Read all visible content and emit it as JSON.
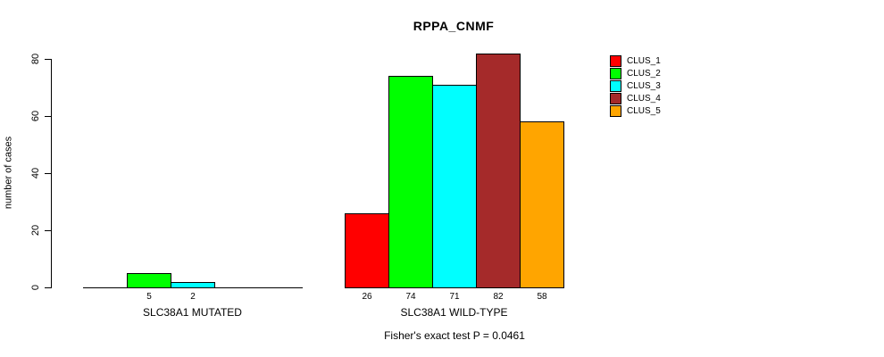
{
  "chart_data": {
    "type": "bar",
    "title": "RPPA_CNMF",
    "ylabel": "number of cases",
    "ylim": [
      0,
      80
    ],
    "yticks": [
      0,
      20,
      40,
      60,
      80
    ],
    "grid": false,
    "legend_position": "right",
    "legend": [
      {
        "name": "CLUS_1",
        "color": "#FF0000"
      },
      {
        "name": "CLUS_2",
        "color": "#00FF00"
      },
      {
        "name": "CLUS_3",
        "color": "#00FFFF"
      },
      {
        "name": "CLUS_4",
        "color": "#A52A2A"
      },
      {
        "name": "CLUS_5",
        "color": "#FFA500"
      }
    ],
    "groups": [
      {
        "label": "SLC38A1 MUTATED",
        "values": [
          0,
          5,
          2,
          0,
          0
        ]
      },
      {
        "label": "SLC38A1 WILD-TYPE",
        "values": [
          26,
          74,
          71,
          82,
          58
        ]
      }
    ],
    "annotation": "Fisher's exact test P = 0.0461",
    "axis_color": "#000000",
    "bar_border_color": "#000000"
  }
}
